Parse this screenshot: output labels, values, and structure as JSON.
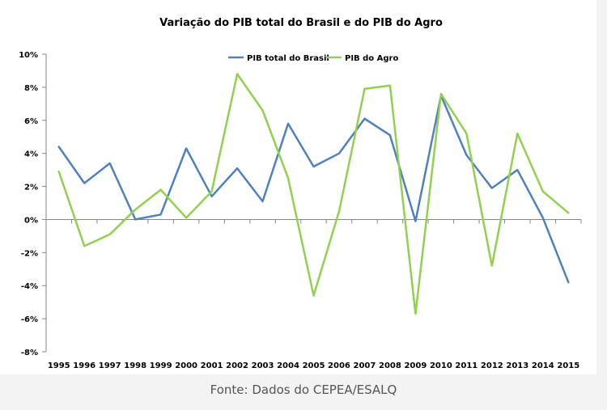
{
  "caption": "Fonte: Dados do CEPEA/ESALQ",
  "chart_data": {
    "type": "line",
    "title": "Variação do PIB total do Brasil e do PIB do Agro",
    "xlabel": "",
    "ylabel": "",
    "x": [
      "1995",
      "1996",
      "1997",
      "1998",
      "1999",
      "2000",
      "2001",
      "2002",
      "2003",
      "2004",
      "2005",
      "2006",
      "2007",
      "2008",
      "2009",
      "2010",
      "2011",
      "2012",
      "2013",
      "2014",
      "2015"
    ],
    "ylim": [
      -8,
      10
    ],
    "yticks": [
      -8,
      -6,
      -4,
      -2,
      0,
      2,
      4,
      6,
      8,
      10
    ],
    "ytick_labels": [
      "-8%",
      "-6%",
      "-4%",
      "-2%",
      "0%",
      "2%",
      "4%",
      "6%",
      "8%",
      "10%"
    ],
    "grid": false,
    "legend_position": "top-center",
    "series": [
      {
        "name": "PIB total do Brasil",
        "color": "#4f81bd",
        "values": [
          4.4,
          2.2,
          3.4,
          0.0,
          0.3,
          4.3,
          1.4,
          3.1,
          1.1,
          5.8,
          3.2,
          4.0,
          6.1,
          5.1,
          -0.1,
          7.5,
          3.9,
          1.9,
          3.0,
          0.1,
          -3.8
        ]
      },
      {
        "name": "PIB do Agro",
        "color": "#92d050",
        "values": [
          2.9,
          -1.6,
          -0.9,
          0.6,
          1.8,
          0.1,
          1.7,
          8.8,
          6.6,
          2.5,
          -4.6,
          0.5,
          7.9,
          8.1,
          -5.7,
          7.6,
          5.2,
          -2.8,
          5.2,
          1.7,
          0.4
        ]
      }
    ]
  }
}
